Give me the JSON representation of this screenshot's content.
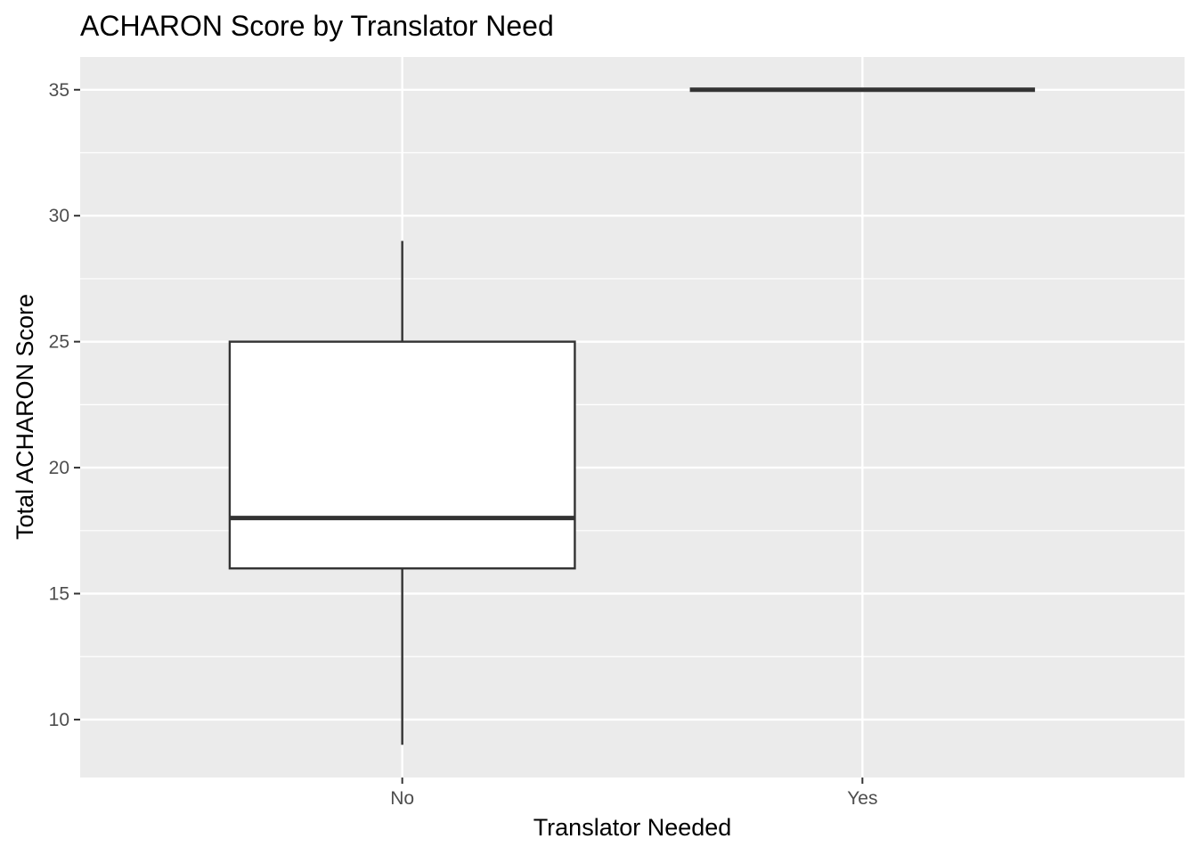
{
  "chart_data": {
    "type": "boxplot",
    "title": "ACHARON Score by Translator Need",
    "xlabel": "Translator Needed",
    "ylabel": "Total ACHARON Score",
    "categories": [
      "No",
      "Yes"
    ],
    "ylim": [
      7.7,
      36.3
    ],
    "yticks": [
      10,
      15,
      20,
      25,
      30,
      35
    ],
    "yticks_labels": [
      "10",
      "15",
      "20",
      "25",
      "30",
      "35"
    ],
    "boxes": [
      {
        "category": "No",
        "whisker_low": 9,
        "q1": 16,
        "median": 18,
        "q3": 25,
        "whisker_high": 29
      },
      {
        "category": "Yes",
        "whisker_low": 35,
        "q1": 35,
        "median": 35,
        "q3": 35,
        "whisker_high": 35
      }
    ],
    "grid": true,
    "colors": {
      "panel_background": "#ebebeb",
      "grid_line": "#ffffff",
      "box_fill": "#ffffff",
      "box_line": "#333333",
      "tick_text": "#4d4d4d",
      "axis_title": "#000000"
    }
  }
}
